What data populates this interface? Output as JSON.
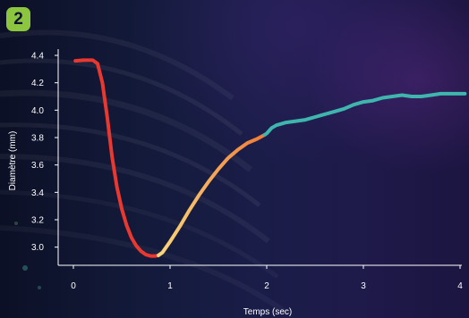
{
  "figure": {
    "panel_number": "2"
  },
  "colors": {
    "axis": "#ffffff",
    "badge": "#8cc63f",
    "segment_red": "#e8382f",
    "segment_orange": "#f07a36",
    "segment_yellow": "#f9d77c",
    "segment_teal": "#3fb6ad"
  },
  "chart_data": {
    "type": "line",
    "title": "",
    "xlabel": "Temps (sec)",
    "ylabel": "Diamètre (mm)",
    "xlim": [
      0,
      4
    ],
    "ylim": [
      2.9,
      4.4
    ],
    "x_ticks": [
      0,
      1,
      2,
      3,
      4
    ],
    "x_tick_labels": [
      "0",
      "1",
      "2",
      "3",
      "4"
    ],
    "y_ticks": [
      3.0,
      3.2,
      3.4,
      3.6,
      3.8,
      4.0,
      4.2,
      4.4
    ],
    "y_tick_labels": [
      "3.0",
      "3.2",
      "3.4",
      "3.6",
      "3.8",
      "4.0",
      "4.2",
      "4.4"
    ],
    "grid": false,
    "series": [
      {
        "x": [
          0.02,
          0.1,
          0.2,
          0.25,
          0.3,
          0.35,
          0.4,
          0.45,
          0.5,
          0.55,
          0.6,
          0.65,
          0.7,
          0.75,
          0.8,
          0.85,
          0.88,
          0.92,
          1.0,
          1.1,
          1.2,
          1.3,
          1.4,
          1.5,
          1.6,
          1.7,
          1.8,
          1.9,
          1.98,
          2.0,
          2.05,
          2.1,
          2.2,
          2.3,
          2.4,
          2.5,
          2.6,
          2.7,
          2.8,
          2.9,
          3.0,
          3.1,
          3.2,
          3.3,
          3.4,
          3.5,
          3.6,
          3.7,
          3.8,
          3.9,
          4.0,
          4.05
        ],
        "y": [
          4.36,
          4.365,
          4.365,
          4.34,
          4.2,
          3.95,
          3.66,
          3.44,
          3.28,
          3.16,
          3.07,
          3.01,
          2.97,
          2.945,
          2.935,
          2.935,
          2.94,
          2.96,
          3.04,
          3.15,
          3.27,
          3.38,
          3.48,
          3.57,
          3.65,
          3.71,
          3.76,
          3.79,
          3.82,
          3.83,
          3.87,
          3.89,
          3.91,
          3.92,
          3.93,
          3.95,
          3.97,
          3.99,
          4.01,
          4.04,
          4.06,
          4.07,
          4.09,
          4.1,
          4.11,
          4.1,
          4.1,
          4.11,
          4.12,
          4.12,
          4.12,
          4.12
        ],
        "segments": [
          {
            "from_x": 0.02,
            "to_x": 0.88,
            "color": "#e8382f"
          },
          {
            "from_x": 0.88,
            "to_x": 1.98,
            "color_start": "#f9d77c",
            "color_end": "#f07a36"
          },
          {
            "from_x": 1.98,
            "to_x": 4.05,
            "color": "#3fb6ad"
          }
        ]
      }
    ]
  }
}
